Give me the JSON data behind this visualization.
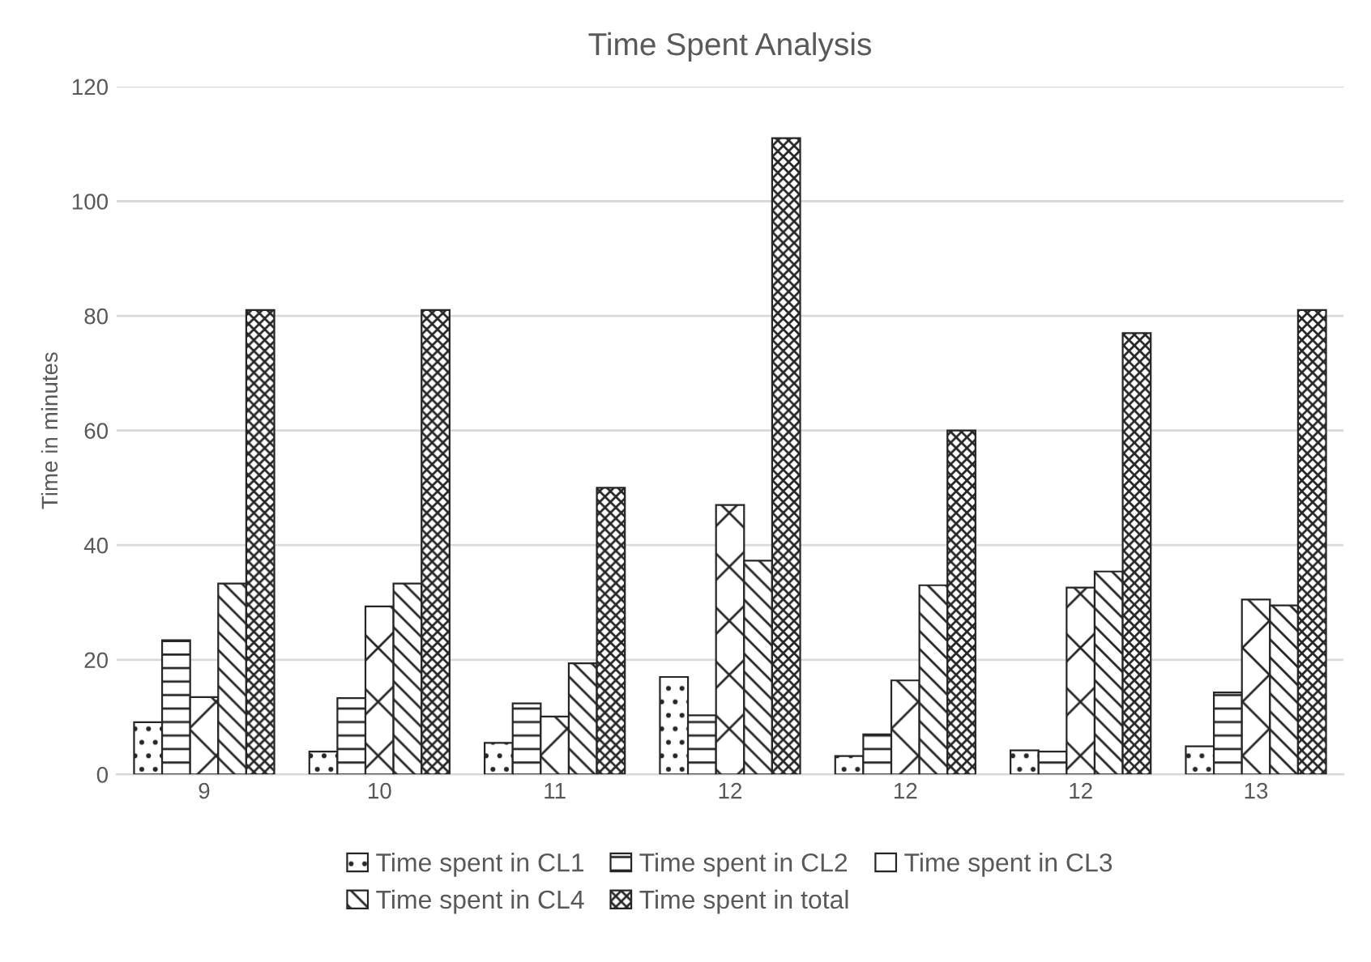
{
  "chart_data": {
    "type": "bar",
    "title": "Time Spent Analysis",
    "ylabel": "Time in minutes",
    "categories": [
      "9",
      "10",
      "11",
      "12",
      "12",
      "12",
      "13"
    ],
    "series": [
      {
        "name": "Time spent in CL1",
        "color": "#262626",
        "values": [
          9.1,
          4,
          5.5,
          17,
          3.2,
          4.2,
          4.9
        ]
      },
      {
        "name": "Time spent in CL2",
        "color": "#262626",
        "values": [
          23.4,
          13.3,
          12.4,
          10.3,
          7,
          4,
          14.3
        ]
      },
      {
        "name": "Time spent in CL3",
        "color": "#262626",
        "values": [
          13.5,
          29.3,
          10.1,
          47,
          16.4,
          32.6,
          30.5
        ]
      },
      {
        "name": "Time spent in CL4",
        "color": "#262626",
        "values": [
          33.3,
          33.3,
          19.4,
          37.3,
          33,
          35.4,
          29.5
        ]
      },
      {
        "name": "Time spent in total",
        "color": "#262626",
        "values": [
          81,
          81,
          50,
          111,
          60,
          77,
          81
        ]
      }
    ],
    "ylim": [
      0,
      120
    ],
    "yticks": [
      0,
      20,
      40,
      60,
      80,
      100,
      120
    ],
    "grid": "y",
    "legend": "bottom"
  }
}
